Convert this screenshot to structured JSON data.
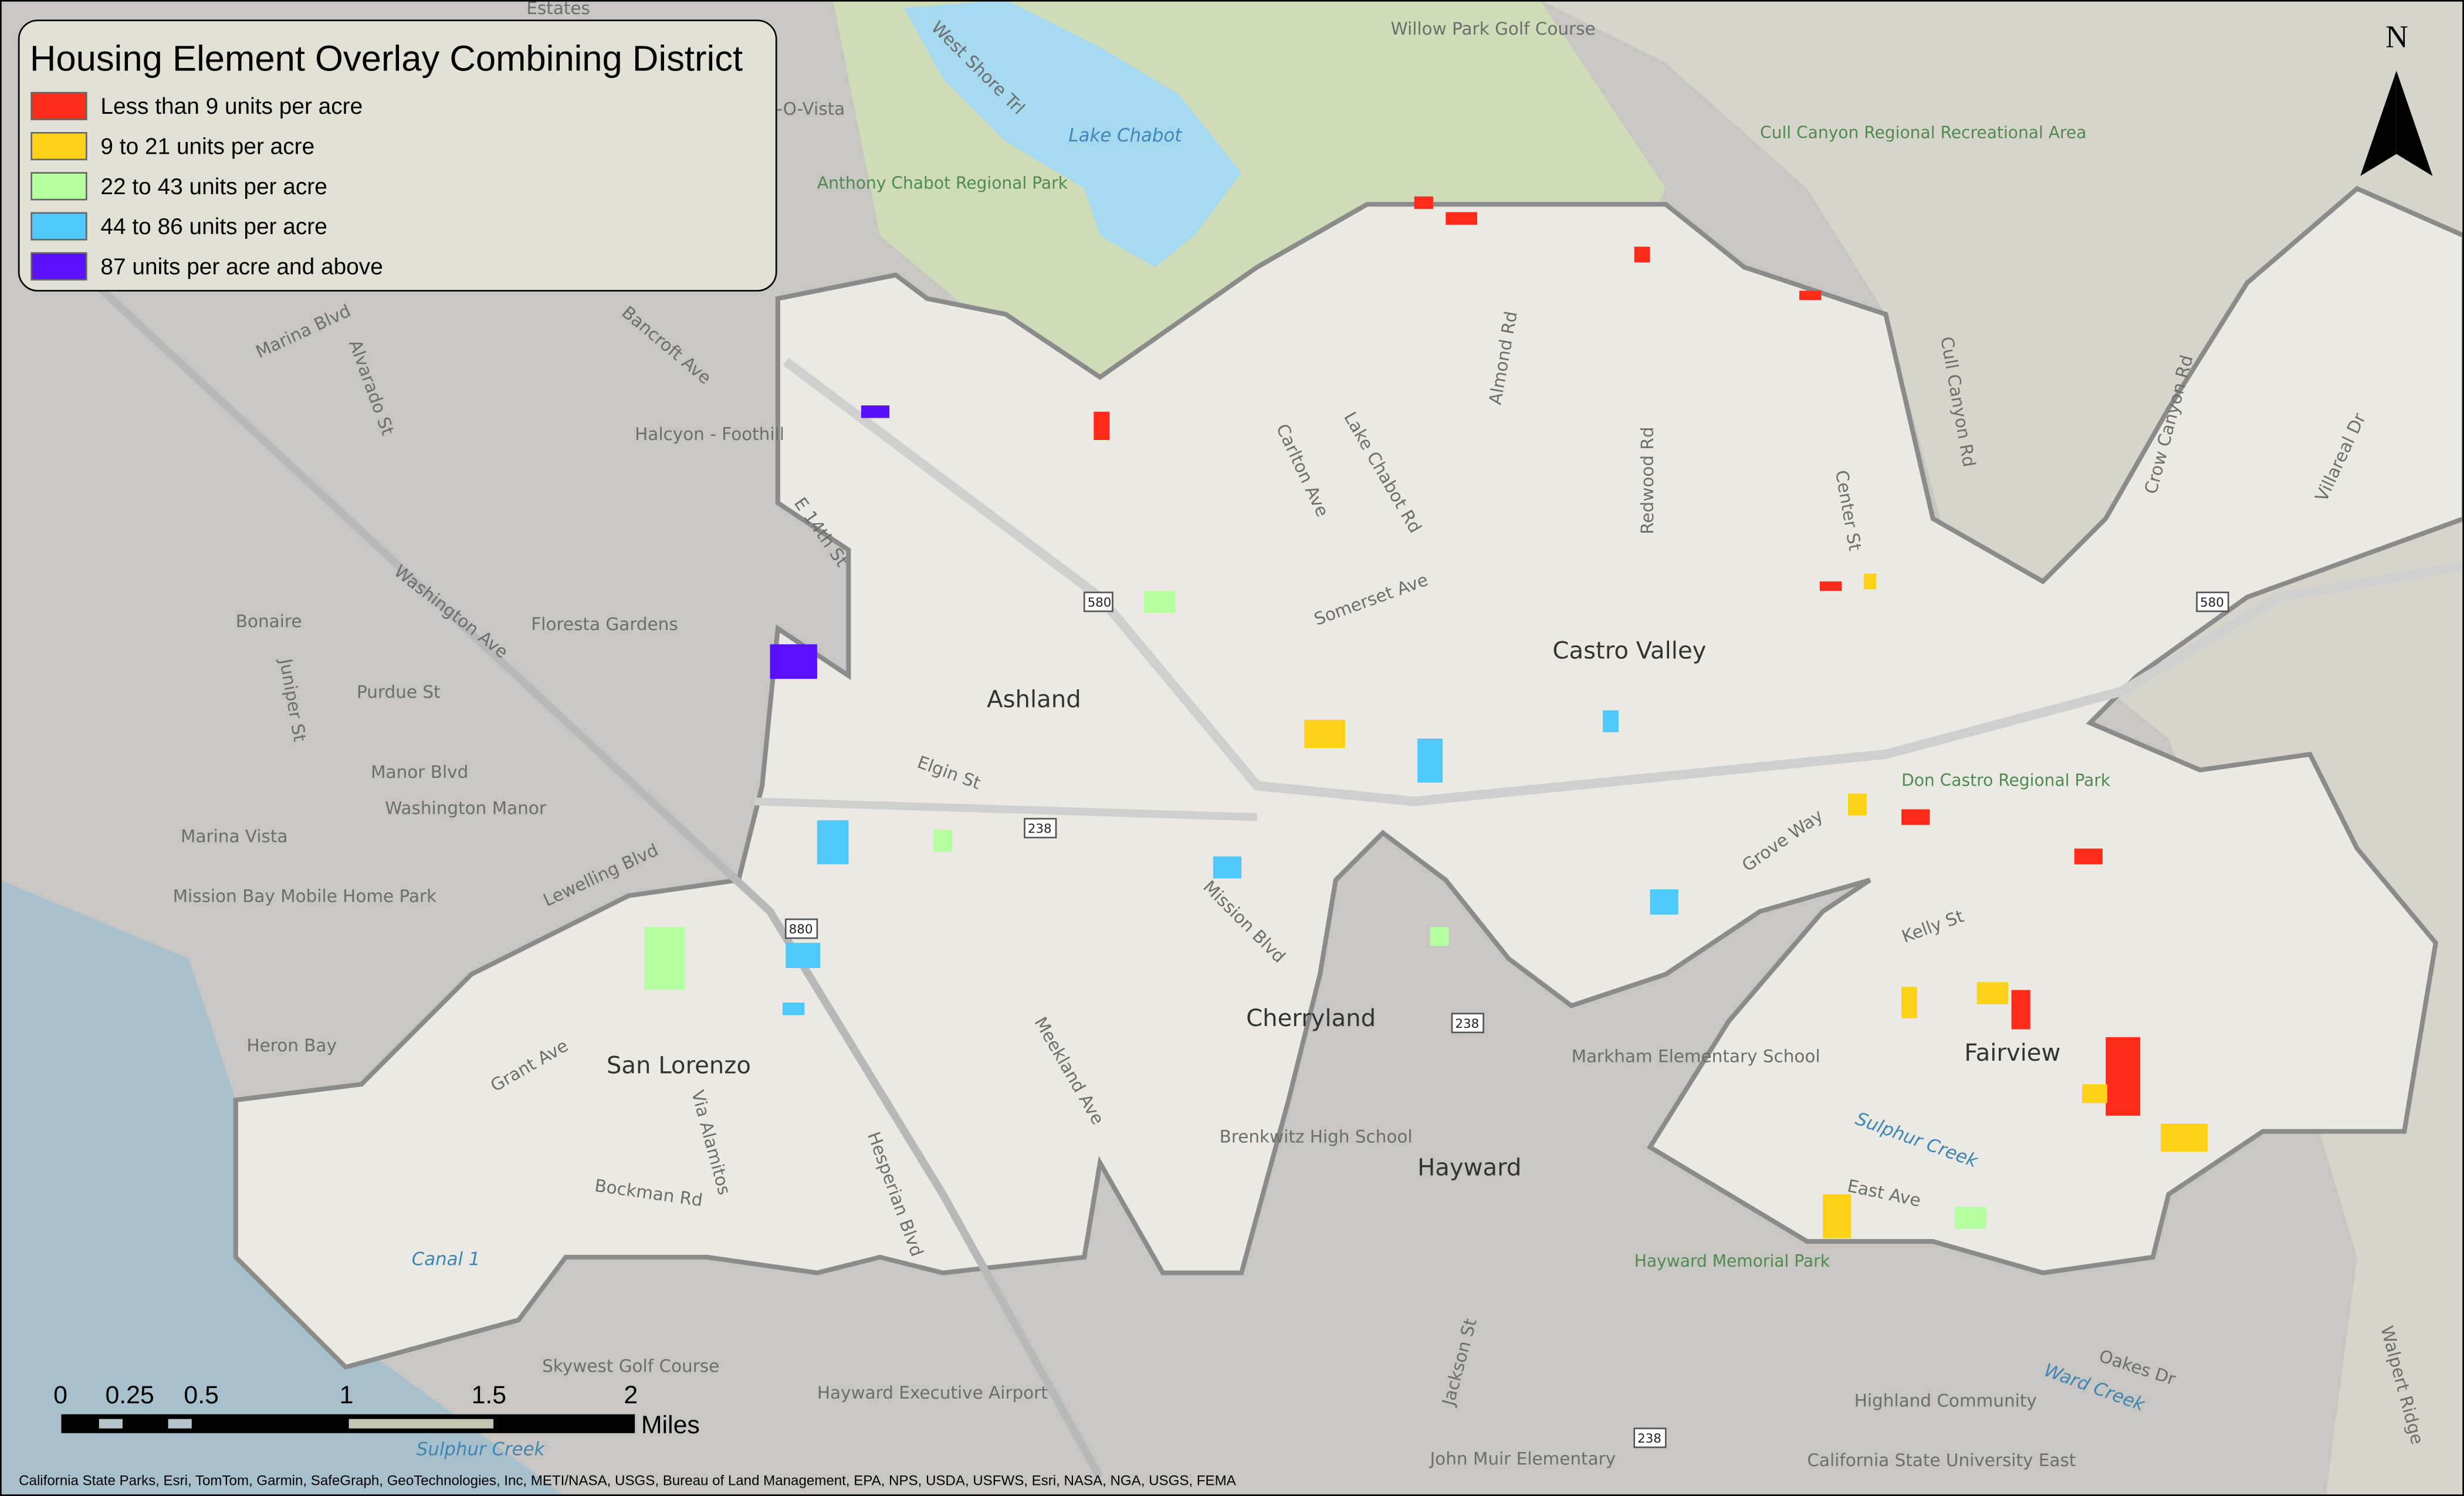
{
  "legend": {
    "title": "Housing Element Overlay Combining District",
    "items": [
      {
        "label": "Less than 9 units per acre",
        "color": "#ff2a1a"
      },
      {
        "label": "9 to 21 units per acre",
        "color": "#ffd21a"
      },
      {
        "label": "22 to 43 units per acre",
        "color": "#b4ffa0"
      },
      {
        "label": "44 to 86 units per acre",
        "color": "#4fc8fa"
      },
      {
        "label": "87 units per acre and above",
        "color": "#5a10ff"
      }
    ]
  },
  "north_arrow": {
    "label": "N",
    "icon": "north-arrow-icon"
  },
  "scale_bar": {
    "ticks": [
      "0",
      "0.25",
      "0.5",
      "1",
      "1.5",
      "2"
    ],
    "unit": "Miles"
  },
  "attribution": "California State Parks, Esri, TomTom, Garmin, SafeGraph, GeoTechnologies, Inc, METI/NASA, USGS, Bureau of Land Management, EPA, NPS, USDA, USFWS, Esri, NASA, NGA, USGS, FEMA",
  "places": {
    "castro_valley": "Castro Valley",
    "ashland": "Ashland",
    "cherryland": "Cherryland",
    "san_lorenzo": "San Lorenzo",
    "hayward": "Hayward",
    "fairview": "Fairview",
    "halcyon": "Halcyon - Foothill",
    "bonaire": "Bonaire",
    "floresta": "Floresta Gardens",
    "washington_manor": "Washington Manor",
    "marina_vista": "Marina Vista",
    "mission_bay": "Mission Bay Mobile Home Park",
    "heron_bay": "Heron Bay",
    "markham": "Markham Elementary School",
    "brenkwitz": "Brenkwitz High School",
    "highland": "Highland Community",
    "csu": "California State University East",
    "john_muir": "John Muir Elementary",
    "airport": "Hayward Executive Airport",
    "skywest": "Skywest Golf Course",
    "willow_park": "Willow Park Golf Course",
    "chabot_park": "Anthony Chabot Regional Park",
    "cull_canyon": "Cull Canyon Regional Recreational Area",
    "don_castro": "Don Castro Regional Park",
    "hayward_memorial": "Hayward Memorial Park",
    "lake_chabot": "Lake Chabot",
    "canal1": "Canal 1",
    "sulphur_creek": "Sulphur Creek",
    "sulphur_creek2": "Sulphur Creek",
    "ward_creek": "Ward Creek",
    "estates": "Estates",
    "o_vista": "-O-Vista"
  },
  "streets": {
    "washington_ave": "Washington Ave",
    "lake_chabot_rd": "Lake Chabot Rd",
    "redwood_rd": "Redwood Rd",
    "grove_way": "Grove Way",
    "mission_blvd": "Mission Blvd",
    "meekland": "Meekland Ave",
    "hesperian": "Hesperian Blvd",
    "grant_ave": "Grant Ave",
    "via_alamitos": "Via Alamitos",
    "bockman": "Bockman Rd",
    "lewelling": "Lewelling Blvd",
    "kelly": "Kelly St",
    "east_ave": "East Ave",
    "jackson": "Jackson St",
    "almond": "Almond Rd",
    "carlton": "Carlton Ave",
    "somerset": "Somerset Ave",
    "center": "Center St",
    "crow_canyon": "Crow Canyon Rd",
    "villareal": "Villareal Dr",
    "marina_blvd": "Marina Blvd",
    "alvarado": "Alvarado St",
    "bancroft": "Bancroft Ave",
    "purdue": "Purdue St",
    "manor": "Manor Blvd",
    "juniper": "Juniper St",
    "elgin": "Elgin St",
    "east14": "E 14th St",
    "west_shore": "West Shore Trl",
    "oakes": "Oakes Dr",
    "walpert": "Walpert Ridge",
    "cull_canyon_rd": "Cull Canyon Rd"
  },
  "shields": [
    "580",
    "238",
    "880",
    "238",
    "238",
    "580"
  ]
}
